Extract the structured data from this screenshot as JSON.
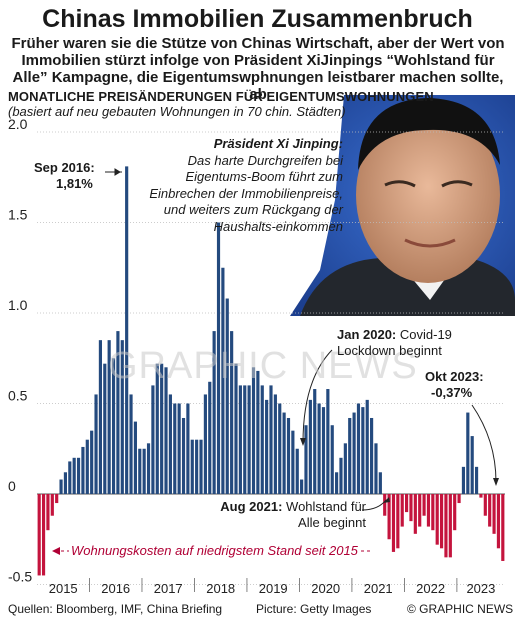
{
  "title": "Chinas Immobilien Zusammenbruch",
  "subtitle": "Früher waren sie die Stütze von Chinas Wirtschaft, aber der Wert von Immobilien stürzt infolge von Präsident XiJinpings “Wohlstand für Alle” Kampagne, die Eigentumswphnungen leistbarer machen sollte, ab",
  "chart_label": "MONATLICHE PREISÄNDERUNGEN FÜR EIGENTUMSWOHNUNGEN",
  "chart_note": "(basiert auf neu gebauten Wohnungen in 70 chin. Städten)",
  "quote": {
    "speaker": "Präsident Xi Jinping:",
    "text": "Das harte Durchgreifen bei Eigentums-Boom führt zum Einbrechen der Immobilienpreise, und weiters zum Rückgang der Haushalts-einkommen"
  },
  "annotations": {
    "sep2016_label": "Sep 2016:",
    "sep2016_value": "1,81%",
    "jan2020_date": "Jan 2020:",
    "jan2020_text": "Covid-19 Lockdown beginnt",
    "okt2023_label": "Okt 2023:",
    "okt2023_value": "-0,37%",
    "aug2021_date": "Aug 2021:",
    "aug2021_text": "Wohlstand für Alle beginnt"
  },
  "footnote": "Wohnungskosten auf niedrigstem Stand seit 2015",
  "watermark": "GRAPHIC NEWS",
  "footer": {
    "sources": "Quellen: Bloomberg, IMF, China Briefing",
    "picture": "Picture: Getty Images",
    "credit": "© GRAPHIC NEWS"
  },
  "colors": {
    "positive": "#244a7e",
    "negative": "#c4143d",
    "grid": "#bdbdbd",
    "footnote": "#b00035"
  },
  "chart_data": {
    "type": "bar",
    "title": "MONATLICHE PREISÄNDERUNGEN FÜR EIGENTUMSWOHNUNGEN",
    "ylim": [
      -0.45,
      2.0
    ],
    "yticks": [
      {
        "v": 2.0,
        "label": "2.0"
      },
      {
        "v": 1.5,
        "label": "1.5"
      },
      {
        "v": 1.0,
        "label": "1.0"
      },
      {
        "v": 0.5,
        "label": "0.5"
      },
      {
        "v": 0,
        "label": "0"
      },
      {
        "v": -0.5,
        "label": "-0.5"
      }
    ],
    "years": [
      "2015",
      "2016",
      "2017",
      "2018",
      "2019",
      "2020",
      "2021",
      "2022",
      "2023"
    ],
    "grid": true,
    "series": [
      {
        "values": [
          -0.45,
          -0.45,
          -0.2,
          -0.12,
          -0.05,
          0.08,
          0.12,
          0.18,
          0.2,
          0.2,
          0.26,
          0.3,
          0.35,
          0.55,
          0.85,
          0.72,
          0.85,
          0.75,
          0.9,
          0.85,
          1.81,
          0.55,
          0.4,
          0.25,
          0.25,
          0.28,
          0.6,
          0.72,
          0.72,
          0.7,
          0.55,
          0.5,
          0.5,
          0.42,
          0.5,
          0.3,
          0.3,
          0.3,
          0.55,
          0.62,
          0.9,
          1.5,
          1.25,
          1.08,
          0.9,
          0.72,
          0.6,
          0.6,
          0.6,
          0.7,
          0.68,
          0.6,
          0.52,
          0.6,
          0.55,
          0.5,
          0.45,
          0.42,
          0.35,
          0.25,
          0.08,
          0.38,
          0.52,
          0.58,
          0.5,
          0.48,
          0.58,
          0.38,
          0.12,
          0.2,
          0.28,
          0.42,
          0.45,
          0.5,
          0.48,
          0.52,
          0.42,
          0.28,
          0.12,
          -0.12,
          -0.25,
          -0.32,
          -0.3,
          -0.18,
          -0.1,
          -0.15,
          -0.22,
          -0.18,
          -0.12,
          -0.18,
          -0.2,
          -0.28,
          -0.3,
          -0.35,
          -0.35,
          -0.2,
          -0.05,
          0.15,
          0.45,
          0.32,
          0.15,
          -0.02,
          -0.12,
          -0.18,
          -0.22,
          -0.3,
          -0.37
        ]
      }
    ]
  }
}
